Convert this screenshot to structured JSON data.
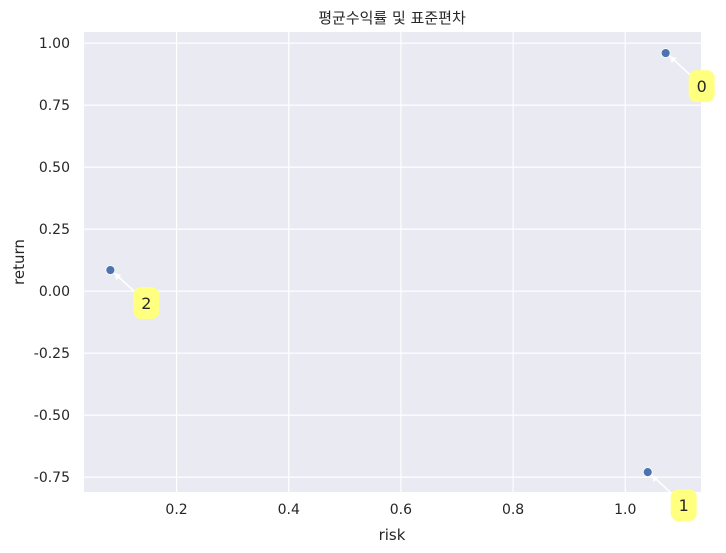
{
  "chart_data": {
    "type": "scatter",
    "title": "평균수익률 및 표준편차",
    "xlabel": "risk",
    "ylabel": "return",
    "xlim": [
      0.035,
      1.135
    ],
    "ylim": [
      -0.81,
      1.045
    ],
    "xticks": [
      0.2,
      0.4,
      0.6,
      0.8,
      1.0
    ],
    "xtick_labels": [
      "0.2",
      "0.4",
      "0.6",
      "0.8",
      "1.0"
    ],
    "yticks": [
      1.0,
      0.75,
      0.5,
      0.25,
      0.0,
      -0.25,
      -0.5,
      -0.75
    ],
    "ytick_labels": [
      "1.00",
      "0.75",
      "0.50",
      "0.25",
      "0.00",
      "-0.25",
      "-0.50",
      "-0.75"
    ],
    "grid": true,
    "background": "#eaeaf2",
    "grid_color": "#ffffff",
    "marker_color": "#4c72b0",
    "annotation_bg": "#ffff80",
    "points": [
      {
        "label": "0",
        "x": 1.072,
        "y": 0.96
      },
      {
        "label": "1",
        "x": 1.04,
        "y": -0.73
      },
      {
        "label": "2",
        "x": 0.082,
        "y": 0.085
      }
    ]
  }
}
